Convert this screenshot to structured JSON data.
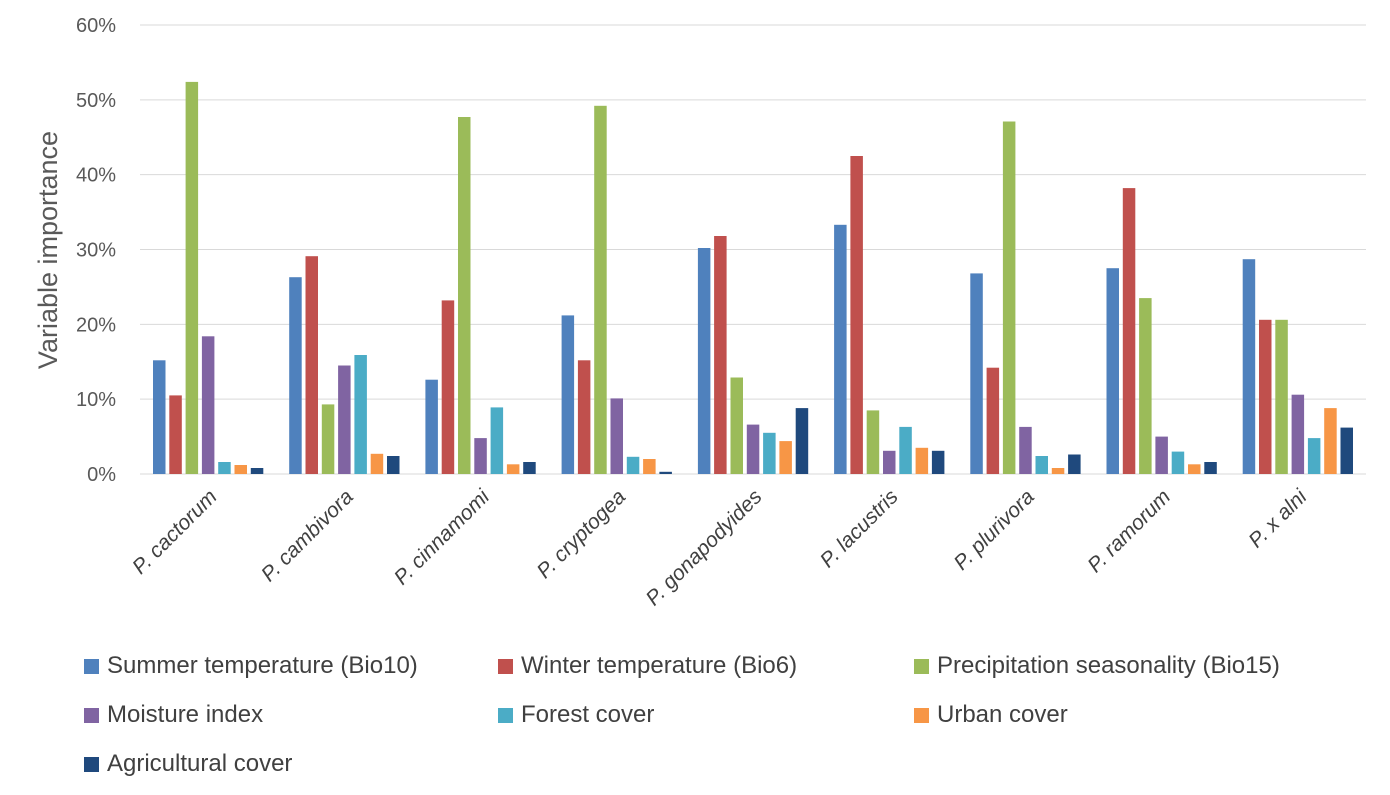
{
  "chart_data": {
    "type": "bar",
    "ylabel": "Variable importance",
    "xlabel": "",
    "ylim": [
      0,
      60
    ],
    "y_ticks": [
      "0%",
      "10%",
      "20%",
      "30%",
      "40%",
      "50%",
      "60%"
    ],
    "y_tick_values": [
      0,
      10,
      20,
      30,
      40,
      50,
      60
    ],
    "grid": true,
    "legend_position": "bottom",
    "categories": [
      "P. cactorum",
      "P. cambivora",
      "P. cinnamomi",
      "P. cryptogea",
      "P. gonapodyides",
      "P. lacustris",
      "P. plurivora",
      "P. ramorum",
      "P. x alni"
    ],
    "series": [
      {
        "name": "Summer temperature (Bio10)",
        "color": "#4F81BD",
        "values": [
          15.2,
          26.3,
          12.6,
          21.2,
          30.2,
          33.3,
          26.8,
          27.5,
          28.7
        ]
      },
      {
        "name": "Winter temperature (Bio6)",
        "color": "#C0504D",
        "values": [
          10.5,
          29.1,
          23.2,
          15.2,
          31.8,
          42.5,
          14.2,
          38.2,
          20.6
        ]
      },
      {
        "name": "Precipitation seasonality (Bio15)",
        "color": "#9BBB59",
        "values": [
          52.4,
          9.3,
          47.7,
          49.2,
          12.9,
          8.5,
          47.1,
          23.5,
          20.6
        ]
      },
      {
        "name": "Moisture index",
        "color": "#8064A2",
        "values": [
          18.4,
          14.5,
          4.8,
          10.1,
          6.6,
          3.1,
          6.3,
          5.0,
          10.6
        ]
      },
      {
        "name": "Forest cover",
        "color": "#4BACC6",
        "values": [
          1.6,
          15.9,
          8.9,
          2.3,
          5.5,
          6.3,
          2.4,
          3.0,
          4.8
        ]
      },
      {
        "name": "Urban cover",
        "color": "#F79646",
        "values": [
          1.2,
          2.7,
          1.3,
          2.0,
          4.4,
          3.5,
          0.8,
          1.3,
          8.8
        ]
      },
      {
        "name": "Agricultural cover",
        "color": "#1F497D",
        "values": [
          0.8,
          2.4,
          1.6,
          0.3,
          8.8,
          3.1,
          2.6,
          1.6,
          6.2
        ]
      }
    ]
  }
}
